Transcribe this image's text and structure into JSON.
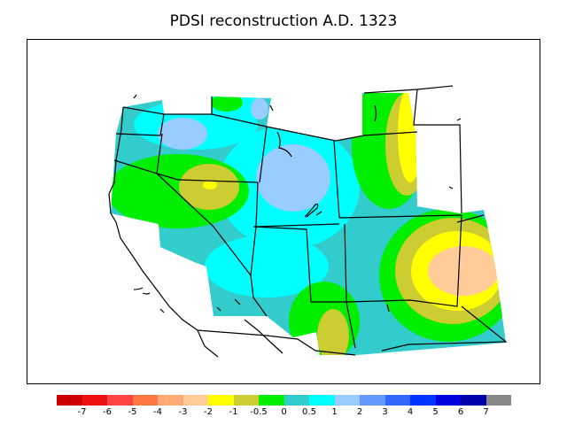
{
  "title": "PDSI reconstruction A.D. 1323",
  "legend": {
    "colors": [
      "#cc0000",
      "#ee1111",
      "#ff4444",
      "#ff7744",
      "#ffaa77",
      "#ffcc99",
      "#ffff00",
      "#cccc33",
      "#00ee00",
      "#33cccc",
      "#00ffff",
      "#99ccff",
      "#6699ff",
      "#3366ff",
      "#0033ff",
      "#0000dd",
      "#0000aa",
      "#888888"
    ],
    "ticks": [
      "-7",
      "-6",
      "-5",
      "-4",
      "-3",
      "-2",
      "-1",
      "-0.5",
      "0",
      "0.5",
      "1",
      "2",
      "3",
      "4",
      "5",
      "6",
      "7"
    ]
  },
  "palette": {
    "teal": "#33cccc",
    "cyan": "#00ffff",
    "light_blue": "#99ccff",
    "green": "#00ee00",
    "olive": "#cccc33",
    "yellow": "#ffff00",
    "peach": "#ffcc99"
  }
}
